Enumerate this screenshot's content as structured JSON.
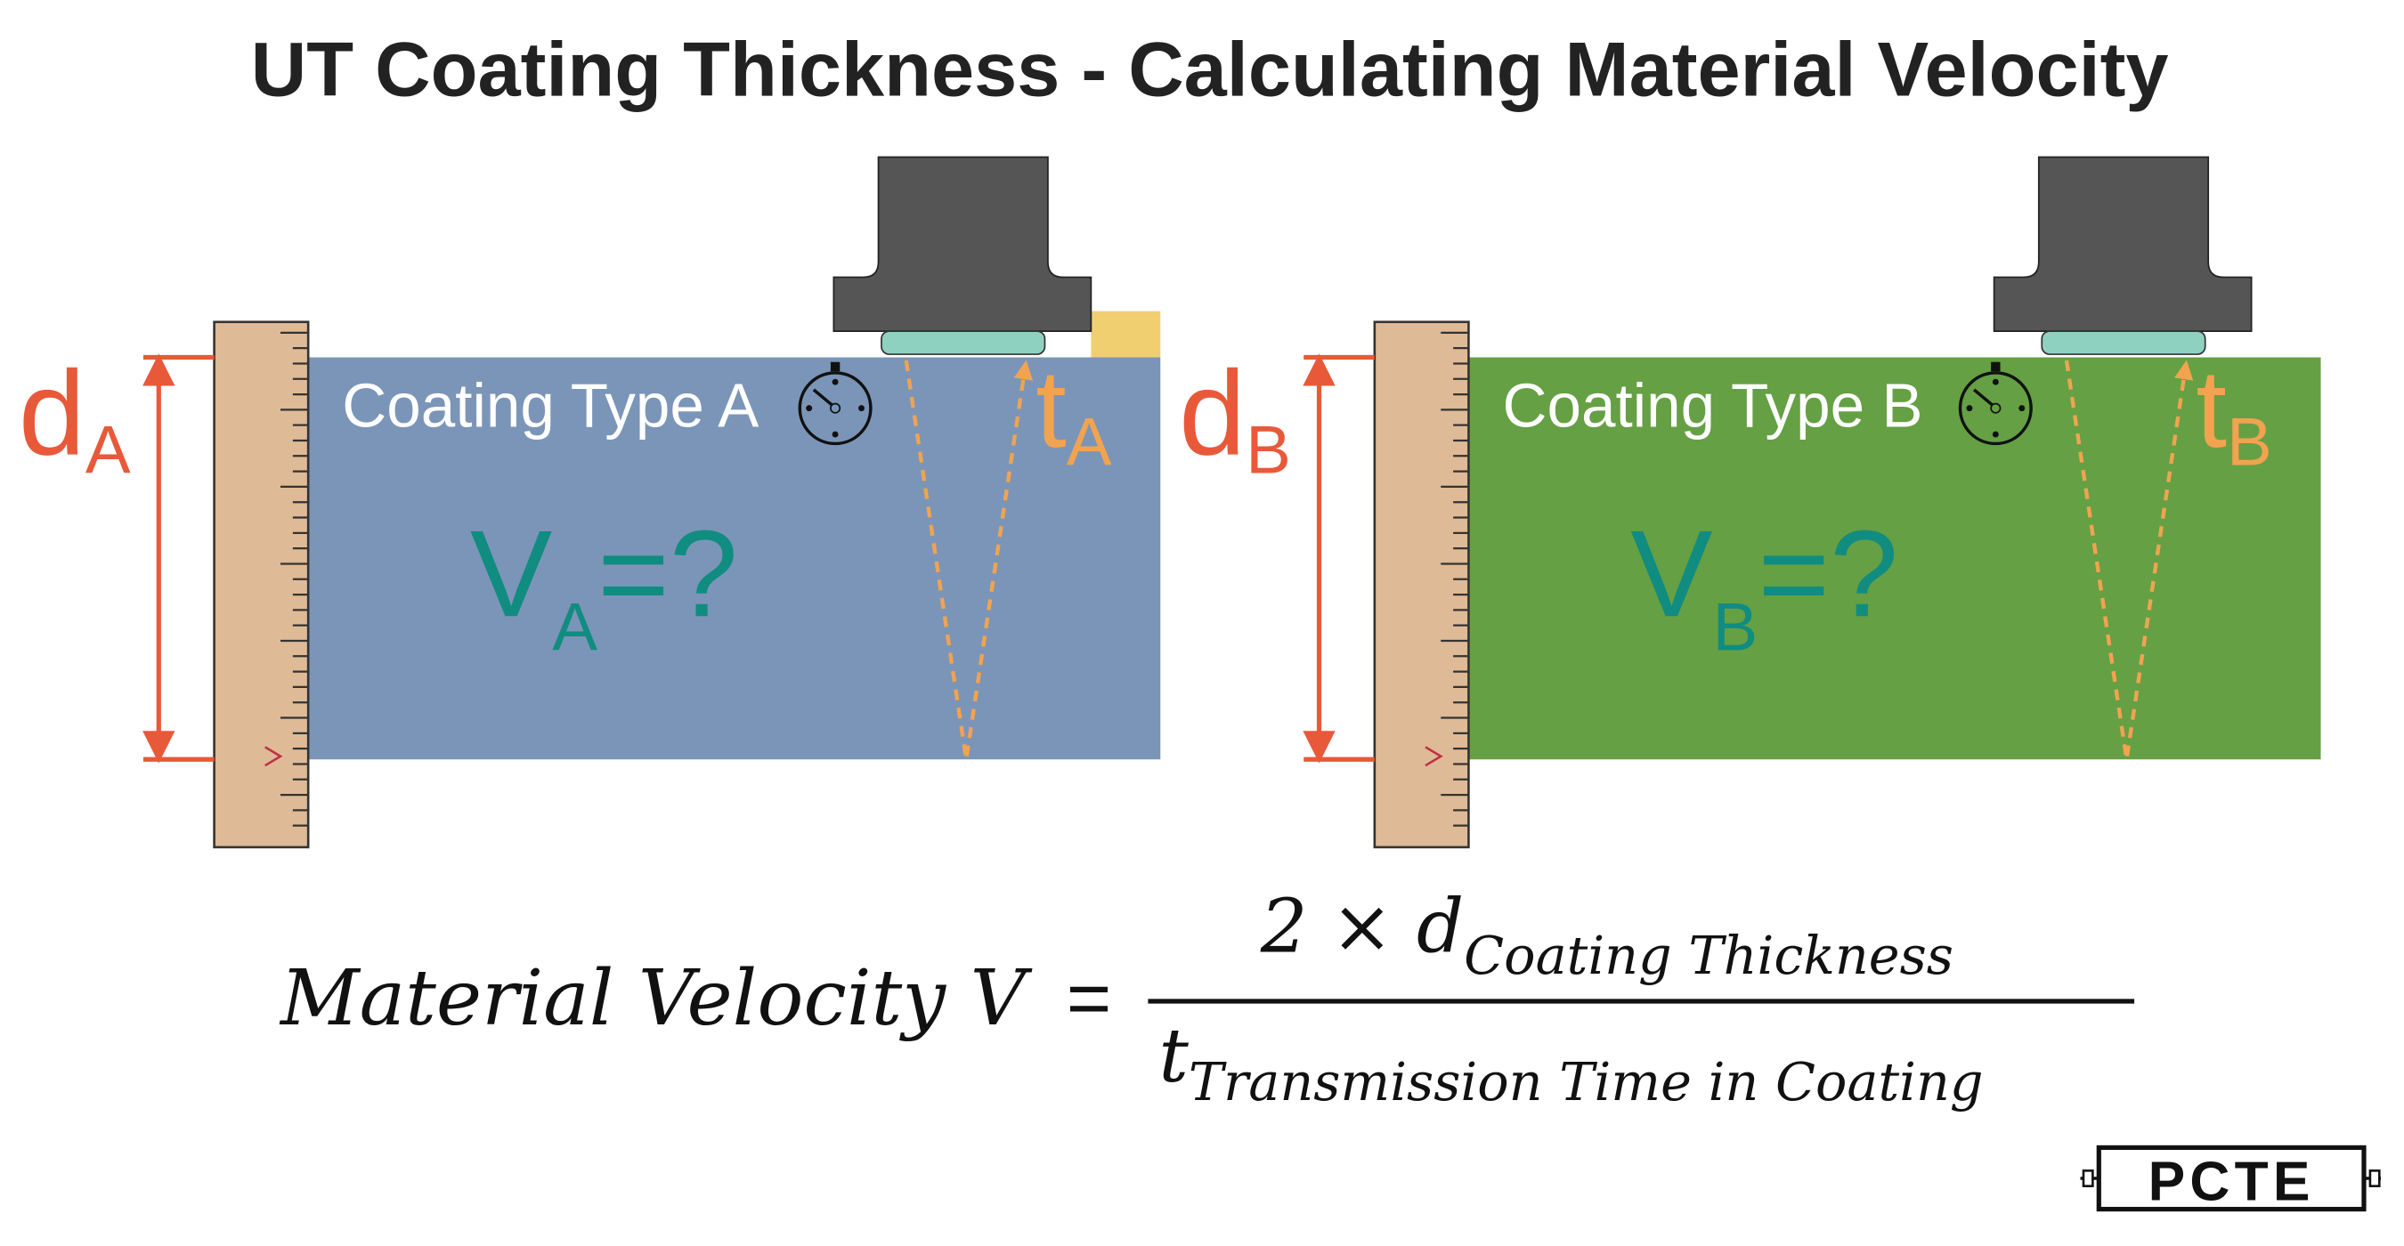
{
  "header": {
    "title": "UT Coating Thickness - Calculating Material Velocity"
  },
  "panels": [
    {
      "label": "Coating Type A",
      "d": "d",
      "d_sub": "A",
      "t": "t",
      "t_sub": "A",
      "v": "V",
      "v_sub": "A",
      "v_rest": "=?"
    },
    {
      "label": "Coating Type B",
      "d": "d",
      "d_sub": "B",
      "t": "t",
      "t_sub": "B",
      "v": "V",
      "v_sub": "B",
      "v_rest": "=?"
    }
  ],
  "formula": {
    "lhs": "Material Velocity V",
    "equals": "=",
    "numerator": "2 × d",
    "numerator_sub": "Coating Thickness",
    "denominator": "t",
    "denominator_sub": "Transmission Time in Coating"
  },
  "logo": "PCTE"
}
